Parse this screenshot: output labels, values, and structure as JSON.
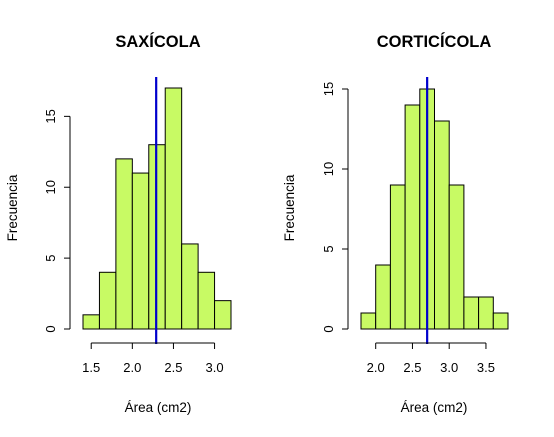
{
  "chart_data": [
    {
      "type": "bar",
      "subtype": "histogram",
      "title": "SAXÍCOLA",
      "xlabel": "Área (cm2)",
      "ylabel": "Frecuencia",
      "bin_edges": [
        1.4,
        1.6,
        1.8,
        2.0,
        2.2,
        2.4,
        2.6,
        2.8,
        3.0,
        3.2
      ],
      "values": [
        1,
        4,
        12,
        11,
        13,
        17,
        6,
        4,
        2
      ],
      "xticks": [
        1.5,
        2.0,
        2.5,
        3.0
      ],
      "xtick_labels": [
        "1.5",
        "2.0",
        "2.5",
        "3.0"
      ],
      "yticks": [
        0,
        5,
        10,
        15
      ],
      "ytick_labels": [
        "0",
        "5",
        "10",
        "15"
      ],
      "ylim": [
        0,
        17
      ],
      "bar_color": "#c8fa64",
      "reference_line": {
        "x": 2.29,
        "color": "#0000cd"
      },
      "grid": false
    },
    {
      "type": "bar",
      "subtype": "histogram",
      "title": "CORTICÍCOLA",
      "xlabel": "Área (cm2)",
      "ylabel": "Frecuencia",
      "bin_edges": [
        1.8,
        2.0,
        2.2,
        2.4,
        2.6,
        2.8,
        3.0,
        3.2,
        3.4,
        3.6,
        3.8
      ],
      "values": [
        1,
        4,
        9,
        14,
        15,
        13,
        9,
        2,
        2,
        1
      ],
      "xticks": [
        2.0,
        2.5,
        3.0,
        3.5
      ],
      "xtick_labels": [
        "2.0",
        "2.5",
        "3.0",
        "3.5"
      ],
      "yticks": [
        0,
        5,
        10,
        15
      ],
      "ytick_labels": [
        "0",
        "5",
        "10",
        "15"
      ],
      "ylim": [
        0,
        15
      ],
      "bar_color": "#c8fa64",
      "reference_line": {
        "x": 2.7,
        "color": "#0000cd"
      },
      "grid": false
    }
  ]
}
